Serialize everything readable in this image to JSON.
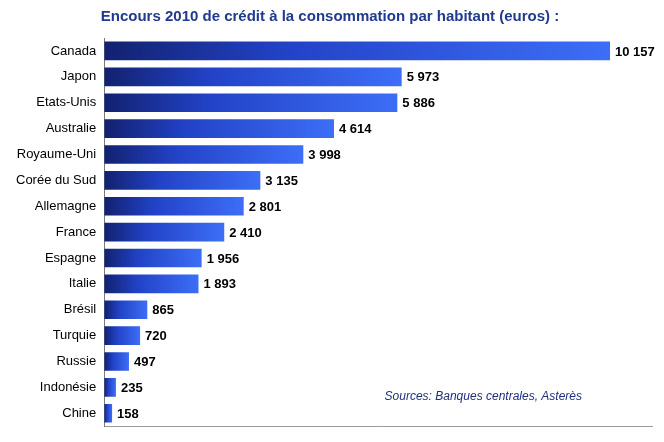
{
  "chart_data": {
    "type": "bar",
    "orientation": "horizontal",
    "title": "Encours 2010 de crédit à la consommation par habitant (euros) :",
    "categories": [
      "Canada",
      "Japon",
      "Etats-Unis",
      "Australie",
      "Royaume-Uni",
      "Corée du Sud",
      "Allemagne",
      "France",
      "Espagne",
      "Italie",
      "Brésil",
      "Turquie",
      "Russie",
      "Indonésie",
      "Chine"
    ],
    "values": [
      10157,
      5973,
      5886,
      4614,
      3998,
      3135,
      2801,
      2410,
      1956,
      1893,
      865,
      720,
      497,
      235,
      158
    ],
    "value_labels": [
      "10 157",
      "5 973",
      "5 886",
      "4 614",
      "3 998",
      "3 135",
      "2 801",
      "2 410",
      "1 956",
      "1 893",
      "865",
      "720",
      "497",
      "235",
      "158"
    ],
    "data_labels": true,
    "color": "#3d6ef7",
    "xlim": [
      0,
      11000
    ],
    "grid": false,
    "tick_labels": "y",
    "annotations": [
      "Sources: Banques centrales, Asterès"
    ]
  }
}
